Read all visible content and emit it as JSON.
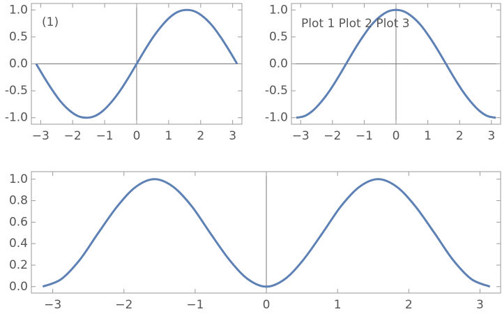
{
  "chart_data": [
    {
      "type": "line",
      "annotation": "(1)",
      "x": [
        -3.14,
        -2.88,
        -2.62,
        -2.36,
        -2.09,
        -1.83,
        -1.57,
        -1.31,
        -1.05,
        -0.79,
        -0.52,
        -0.26,
        0,
        0.26,
        0.52,
        0.79,
        1.05,
        1.31,
        1.57,
        1.83,
        2.09,
        2.36,
        2.62,
        2.88,
        3.14
      ],
      "series": [
        {
          "color": "#5e81b5",
          "values": [
            0,
            -0.26,
            -0.5,
            -0.71,
            -0.87,
            -0.97,
            -1,
            -0.97,
            -0.87,
            -0.71,
            -0.5,
            -0.26,
            0,
            0.26,
            0.5,
            0.71,
            0.87,
            0.97,
            1,
            0.97,
            0.87,
            0.71,
            0.5,
            0.26,
            0
          ]
        }
      ],
      "xlim": [
        -3.29,
        3.29
      ],
      "ylim": [
        -1.12,
        1.12
      ],
      "xticks": [
        {
          "value": -3,
          "label": "−3"
        },
        {
          "value": -2,
          "label": "−2"
        },
        {
          "value": -1,
          "label": "−1"
        },
        0,
        1,
        2,
        3
      ],
      "yticks": [
        {
          "value": -1,
          "label": "-1.0"
        },
        {
          "value": -0.5,
          "label": "-0.5"
        },
        {
          "value": 0,
          "label": "0.0"
        },
        0.5,
        {
          "value": 1,
          "label": "1.0"
        }
      ]
    },
    {
      "type": "line",
      "annotation": "Plot 1 Plot 2 Plot 3",
      "x": [
        -3.14,
        -2.88,
        -2.62,
        -2.36,
        -2.09,
        -1.83,
        -1.57,
        -1.31,
        -1.05,
        -0.79,
        -0.52,
        -0.26,
        0,
        0.26,
        0.52,
        0.79,
        1.05,
        1.31,
        1.57,
        1.83,
        2.09,
        2.36,
        2.62,
        2.88,
        3.14
      ],
      "series": [
        {
          "color": "#5e81b5",
          "values": [
            -1,
            -0.97,
            -0.87,
            -0.71,
            -0.5,
            -0.26,
            0,
            0.26,
            0.5,
            0.71,
            0.87,
            0.97,
            1,
            0.97,
            0.87,
            0.71,
            0.5,
            0.26,
            0,
            -0.26,
            -0.5,
            -0.71,
            -0.87,
            -0.97,
            -1
          ]
        }
      ],
      "xlim": [
        -3.29,
        3.29
      ],
      "ylim": [
        -1.12,
        1.12
      ],
      "xticks": [
        {
          "value": -3,
          "label": "−3"
        },
        {
          "value": -2,
          "label": "−2"
        },
        {
          "value": -1,
          "label": "−1"
        },
        0,
        1,
        2,
        3
      ],
      "yticks": [
        {
          "value": -1,
          "label": "-1.0"
        },
        {
          "value": -0.5,
          "label": "-0.5"
        },
        {
          "value": 0,
          "label": "0.0"
        },
        0.5,
        {
          "value": 1,
          "label": "1.0"
        }
      ]
    },
    {
      "type": "line",
      "x": [
        -3.14,
        -2.88,
        -2.62,
        -2.36,
        -2.09,
        -1.83,
        -1.57,
        -1.31,
        -1.05,
        -0.79,
        -0.52,
        -0.26,
        0,
        0.26,
        0.52,
        0.79,
        1.05,
        1.31,
        1.57,
        1.83,
        2.09,
        2.36,
        2.62,
        2.88,
        3.14
      ],
      "series": [
        {
          "color": "#5e81b5",
          "values": [
            0,
            0.07,
            0.25,
            0.5,
            0.75,
            0.93,
            1,
            0.93,
            0.75,
            0.5,
            0.25,
            0.07,
            0,
            0.07,
            0.25,
            0.5,
            0.75,
            0.93,
            1,
            0.93,
            0.75,
            0.5,
            0.25,
            0.07,
            0
          ]
        }
      ],
      "xlim": [
        -3.3,
        3.29
      ],
      "ylim": [
        -0.06,
        1.07
      ],
      "xticks": [
        {
          "value": -3,
          "label": "−3"
        },
        {
          "value": -2,
          "label": "−2"
        },
        {
          "value": -1,
          "label": "−1"
        },
        0,
        1,
        2,
        3
      ],
      "yticks": [
        {
          "value": 0,
          "label": "0.0"
        },
        0.2,
        0.4,
        0.6,
        0.8,
        {
          "value": 1,
          "label": "1.0"
        }
      ]
    }
  ]
}
